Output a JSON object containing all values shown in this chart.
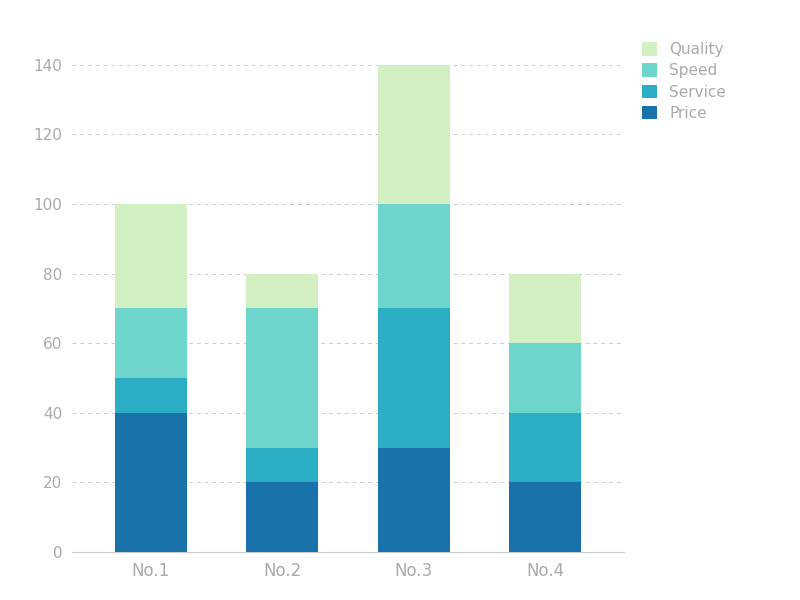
{
  "categories": [
    "No.1",
    "No.2",
    "No.3",
    "No.4"
  ],
  "series": [
    {
      "label": "Price",
      "values": [
        40,
        20,
        30,
        20
      ],
      "color": "#1a72aa"
    },
    {
      "label": "Service",
      "values": [
        10,
        10,
        40,
        20
      ],
      "color": "#2badc4"
    },
    {
      "label": "Speed",
      "values": [
        20,
        40,
        30,
        20
      ],
      "color": "#6dd5cc"
    },
    {
      "label": "Quality",
      "values": [
        30,
        10,
        40,
        20
      ],
      "color": "#d3f0c2"
    }
  ],
  "ylim": [
    0,
    150
  ],
  "yticks": [
    0,
    20,
    40,
    60,
    80,
    100,
    120,
    140
  ],
  "bar_width": 0.55,
  "background_color": "#ffffff",
  "grid_color": "#cccccc",
  "tick_label_color": "#aaaaaa",
  "legend_order": [
    "Quality",
    "Speed",
    "Service",
    "Price"
  ],
  "figsize": [
    8.0,
    6.0
  ],
  "dpi": 100
}
